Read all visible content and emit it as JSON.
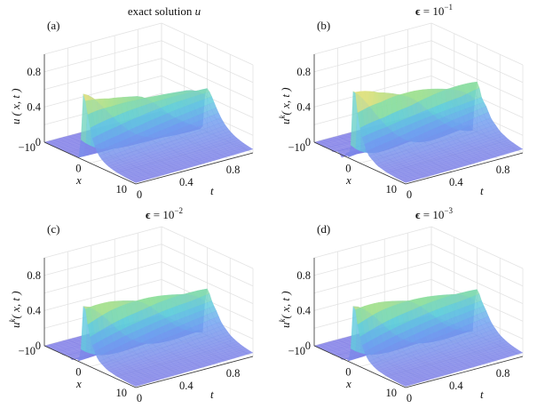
{
  "chart_data": [
    {
      "type": "surface",
      "panel_label": "(a)",
      "title": "exact solution u",
      "title_parts": {
        "text": "exact solution ",
        "var": "u"
      },
      "xlabel": "x",
      "tlabel": "t",
      "zlabel": {
        "var": "u",
        "sup": "",
        "args": "( x, t )"
      },
      "xlim": [
        -10,
        10
      ],
      "tlim": [
        0,
        1
      ],
      "zlim": [
        0,
        1
      ],
      "x_ticks": [
        "-10",
        "0",
        "10"
      ],
      "x_tick_values": [
        -10,
        0,
        10
      ],
      "t_ticks": [
        "0",
        "0.4",
        "0.8"
      ],
      "t_tick_values": [
        0,
        0.4,
        0.8
      ],
      "z_ticks": [
        "0",
        "0.4",
        "0.8"
      ],
      "z_tick_values": [
        0,
        0.4,
        0.8
      ],
      "grid": true,
      "ridge_peak": {
        "t": [
          0,
          0.2,
          0.4,
          0.6,
          0.8,
          1.0
        ],
        "u": [
          0.75,
          0.65,
          0.59,
          0.55,
          0.52,
          0.5
        ]
      },
      "oscillation": 0
    },
    {
      "type": "surface",
      "panel_label": "(b)",
      "title_parts": {
        "eps": "ϵ",
        "eq": " = 10",
        "exp": "−1"
      },
      "xlabel": "x",
      "tlabel": "t",
      "zlabel": {
        "var": "u",
        "sup": "k",
        "args": "( x, t )"
      },
      "xlim": [
        -10,
        10
      ],
      "tlim": [
        0,
        1
      ],
      "zlim": [
        0,
        1
      ],
      "x_ticks": [
        "-10",
        "0",
        "10"
      ],
      "x_tick_values": [
        -10,
        0,
        10
      ],
      "t_ticks": [
        "0",
        "0.4",
        "0.8"
      ],
      "t_tick_values": [
        0,
        0.4,
        0.8
      ],
      "z_ticks": [
        "0",
        "0.4",
        "0.8"
      ],
      "z_tick_values": [
        0,
        0.4,
        0.8
      ],
      "grid": true,
      "ridge_peak": {
        "t": [
          0,
          0.2,
          0.4,
          0.6,
          0.8,
          1.0
        ],
        "u": [
          0.78,
          0.66,
          0.6,
          0.56,
          0.53,
          0.51
        ]
      },
      "oscillation": 0.09
    },
    {
      "type": "surface",
      "panel_label": "(c)",
      "title_parts": {
        "eps": "ϵ",
        "eq": " = 10",
        "exp": "−2"
      },
      "xlabel": "x",
      "tlabel": "t",
      "zlabel": {
        "var": "u",
        "sup": "k",
        "args": "( x, t )"
      },
      "xlim": [
        -10,
        10
      ],
      "tlim": [
        0,
        1
      ],
      "zlim": [
        0,
        1
      ],
      "x_ticks": [
        "-10",
        "0",
        "10"
      ],
      "x_tick_values": [
        -10,
        0,
        10
      ],
      "t_ticks": [
        "0",
        "0.4",
        "0.8"
      ],
      "t_tick_values": [
        0,
        0.4,
        0.8
      ],
      "z_ticks": [
        "0",
        "0.4",
        "0.8"
      ],
      "z_tick_values": [
        0,
        0.4,
        0.8
      ],
      "grid": true,
      "ridge_peak": {
        "t": [
          0,
          0.2,
          0.4,
          0.6,
          0.8,
          1.0
        ],
        "u": [
          0.65,
          0.62,
          0.58,
          0.55,
          0.52,
          0.5
        ]
      },
      "oscillation": 0.05
    },
    {
      "type": "surface",
      "panel_label": "(d)",
      "title_parts": {
        "eps": "ϵ",
        "eq": " = 10",
        "exp": "−3"
      },
      "xlabel": "x",
      "tlabel": "t",
      "zlabel": {
        "var": "u",
        "sup": "k",
        "args": "( x, t )"
      },
      "xlim": [
        -10,
        10
      ],
      "tlim": [
        0,
        1
      ],
      "zlim": [
        0,
        1
      ],
      "x_ticks": [
        "-10",
        "0",
        "10"
      ],
      "x_tick_values": [
        -10,
        0,
        10
      ],
      "t_ticks": [
        "0",
        "0.4",
        "0.8"
      ],
      "t_tick_values": [
        0,
        0.4,
        0.8
      ],
      "z_ticks": [
        "0",
        "0.4",
        "0.8"
      ],
      "z_tick_values": [
        0,
        0.4,
        0.8
      ],
      "grid": true,
      "ridge_peak": {
        "t": [
          0,
          0.2,
          0.4,
          0.6,
          0.8,
          1.0
        ],
        "u": [
          0.65,
          0.62,
          0.58,
          0.55,
          0.52,
          0.5
        ]
      },
      "oscillation": 0.04
    }
  ]
}
